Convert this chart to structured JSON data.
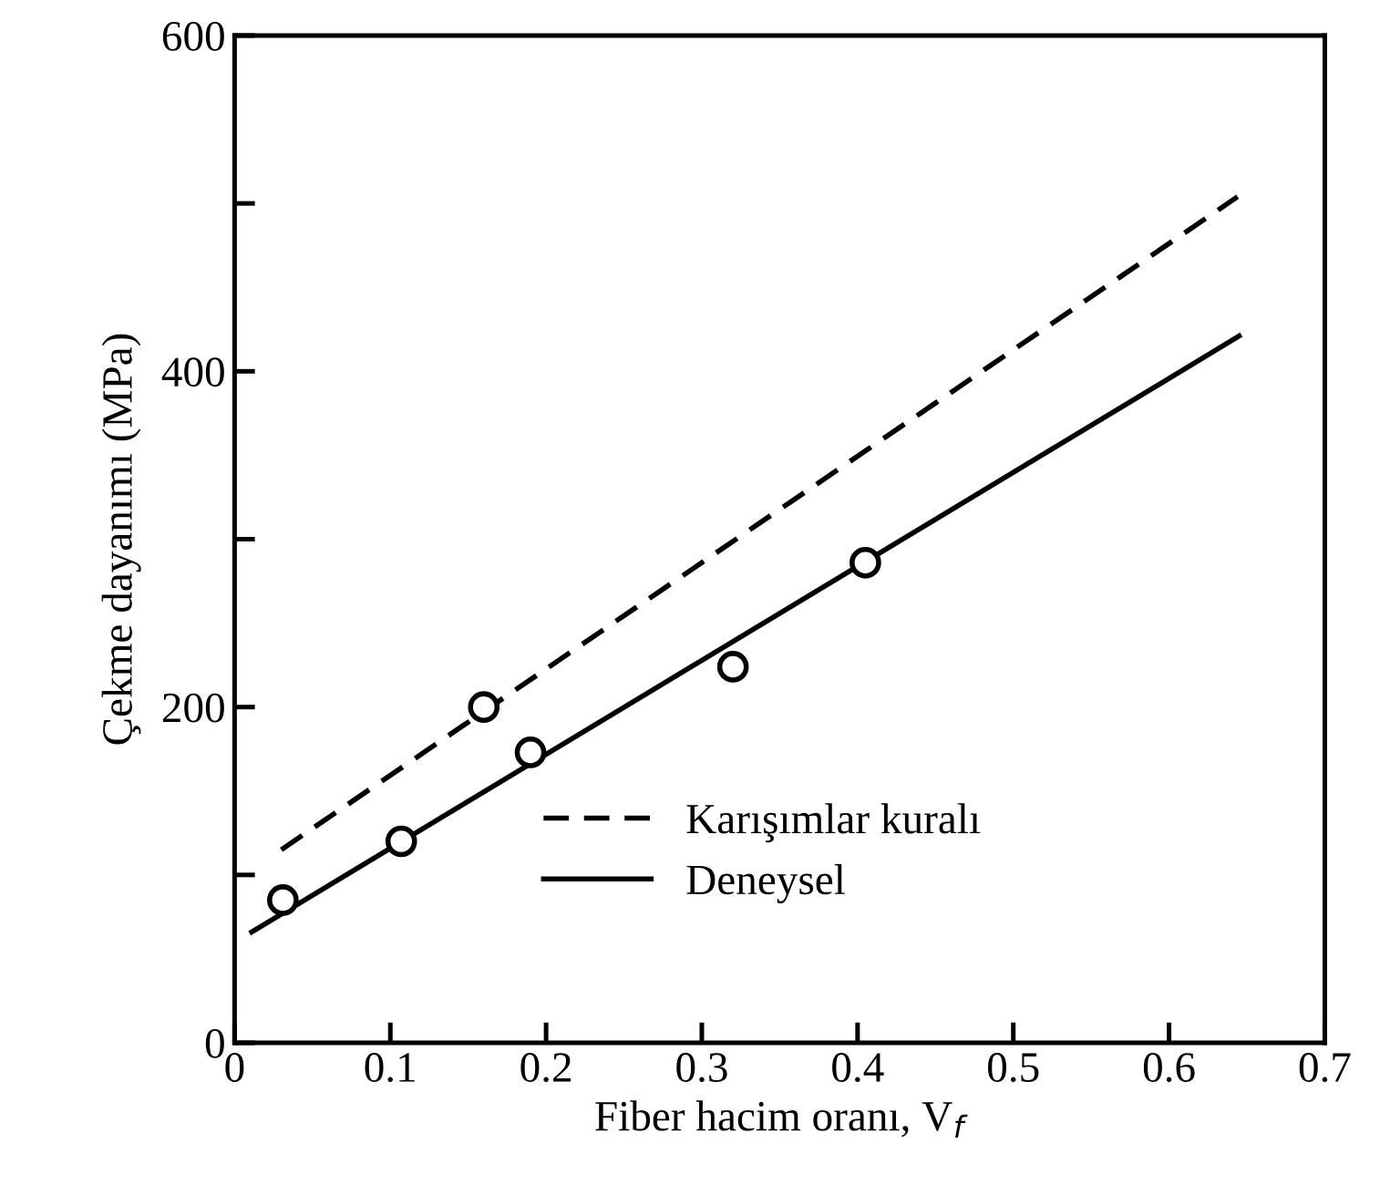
{
  "chart_data": {
    "type": "line",
    "xlabel": "Fiber hacim oranı, V$_{f}$",
    "ylabel": "Çekme dayanımı (MPa)",
    "xlim": [
      0,
      0.7
    ],
    "xticks": [
      0,
      0.1,
      0.2,
      0.3,
      0.4,
      0.5,
      0.6,
      0.7
    ],
    "ylim": [
      0,
      600
    ],
    "yticks": [
      0,
      {
        "value": 100,
        "label": null
      },
      200,
      {
        "value": 300,
        "label": null
      },
      400,
      {
        "value": 500,
        "label": null
      },
      600
    ],
    "grid": false,
    "legend": "bottom right",
    "series": [
      {
        "name": "Karışımlar kuralı",
        "color": "#000000",
        "line_style": "dashed",
        "marker": "none",
        "x": [
          0.03,
          0.644
        ],
        "values": [
          115,
          504
        ]
      },
      {
        "name": "Deneysel",
        "color": "#000000",
        "line_style": "solid",
        "marker": "none",
        "x": [
          0.011,
          0.645
        ],
        "values": [
          66,
          421
        ]
      },
      {
        "type": "scatter",
        "color": "#000000",
        "marker": "circle",
        "x": [
          0.031,
          0.107,
          0.16,
          0.19,
          0.32,
          0.405
        ],
        "values": [
          85,
          120,
          200,
          173,
          224,
          286
        ]
      }
    ]
  }
}
